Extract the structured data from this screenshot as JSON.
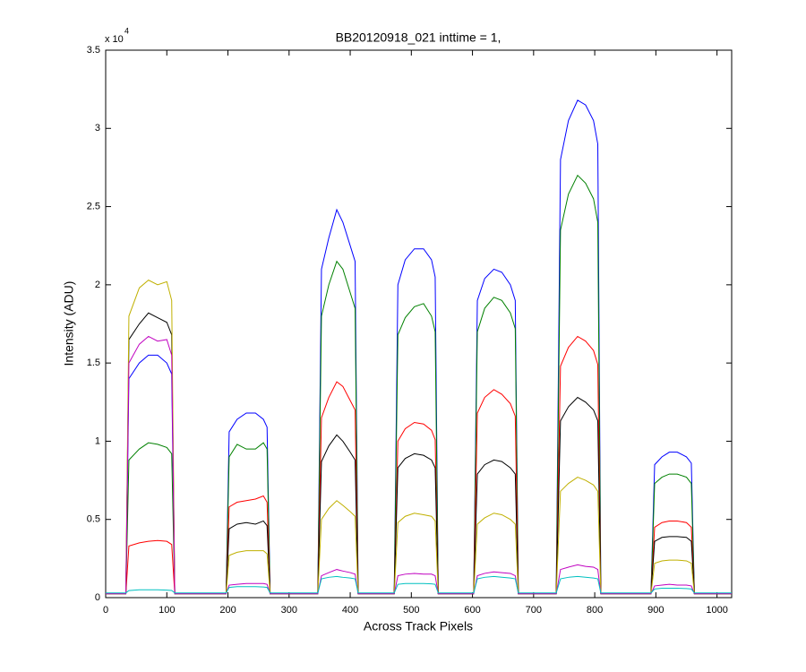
{
  "chart_data": {
    "type": "line",
    "title": "BB20120918_021 inttime = 1,",
    "x_label": "Across Track Pixels",
    "y_label": "Intensity (ADU)",
    "y_multiplier": {
      "base": "x 10",
      "power": "4"
    },
    "xlim": [
      0,
      1024
    ],
    "xticks": [
      0,
      100,
      200,
      300,
      400,
      500,
      600,
      700,
      800,
      900,
      1000
    ],
    "ylim": [
      0,
      35000
    ],
    "yticks": [
      0,
      {
        "value": 5000,
        "label": "0.5"
      },
      {
        "value": 10000,
        "label": "1"
      },
      {
        "value": 15000,
        "label": "1.5"
      },
      {
        "value": 20000,
        "label": "2"
      },
      {
        "value": 25000,
        "label": "2.5"
      },
      {
        "value": 30000,
        "label": "3"
      },
      {
        "value": 35000,
        "label": "3.5"
      }
    ],
    "grid": false,
    "x": [
      0,
      33,
      38,
      55,
      70,
      85,
      100,
      108,
      113,
      197,
      202,
      215,
      230,
      245,
      258,
      264,
      269,
      347,
      353,
      365,
      378,
      388,
      400,
      408,
      413,
      472,
      478,
      490,
      505,
      520,
      533,
      539,
      544,
      602,
      608,
      620,
      635,
      648,
      662,
      670,
      675,
      737,
      744,
      757,
      772,
      785,
      798,
      805,
      810,
      892,
      898,
      910,
      922,
      935,
      950,
      958,
      963,
      1024
    ],
    "series": [
      {
        "color": "#0000ff",
        "values": [
          250,
          250,
          14000,
          15000,
          15500,
          15500,
          15000,
          14300,
          250,
          250,
          10600,
          11400,
          11800,
          11800,
          11400,
          10900,
          250,
          250,
          21000,
          23000,
          24800,
          24000,
          22500,
          21500,
          250,
          250,
          20000,
          21600,
          22300,
          22300,
          21600,
          20500,
          250,
          250,
          19000,
          20400,
          21000,
          20800,
          20000,
          19000,
          250,
          250,
          28000,
          30500,
          31800,
          31500,
          30500,
          29000,
          250,
          250,
          8500,
          9000,
          9300,
          9300,
          9000,
          8600,
          250,
          250
        ]
      },
      {
        "color": "#008000",
        "values": [
          250,
          250,
          8800,
          9500,
          9900,
          9800,
          9600,
          9200,
          250,
          250,
          9000,
          9800,
          9500,
          9500,
          9900,
          9500,
          250,
          250,
          18000,
          20000,
          21500,
          21000,
          19500,
          18500,
          250,
          250,
          16800,
          17900,
          18600,
          18800,
          18000,
          17000,
          250,
          250,
          17000,
          18500,
          19200,
          19000,
          18200,
          17200,
          250,
          250,
          23500,
          25800,
          27000,
          26500,
          25500,
          24000,
          250,
          250,
          7300,
          7700,
          7900,
          7900,
          7700,
          7300,
          250,
          250
        ]
      },
      {
        "color": "#ff0000",
        "values": [
          250,
          250,
          3300,
          3500,
          3600,
          3650,
          3600,
          3400,
          250,
          250,
          5800,
          6100,
          6200,
          6300,
          6500,
          6100,
          250,
          250,
          11500,
          12800,
          13800,
          13500,
          12600,
          12000,
          250,
          250,
          10000,
          10800,
          11200,
          11100,
          10700,
          10100,
          250,
          250,
          11800,
          12800,
          13300,
          13000,
          12400,
          11600,
          250,
          250,
          14800,
          16000,
          16700,
          16400,
          15800,
          14900,
          250,
          250,
          4500,
          4800,
          4900,
          4900,
          4800,
          4500,
          250,
          250
        ]
      },
      {
        "color": "#000000",
        "values": [
          250,
          250,
          16500,
          17500,
          18200,
          17900,
          17600,
          16800,
          250,
          250,
          4400,
          4700,
          4800,
          4700,
          4900,
          4600,
          250,
          250,
          8700,
          9700,
          10400,
          10000,
          9300,
          8800,
          250,
          250,
          8300,
          8900,
          9200,
          9100,
          8800,
          8300,
          250,
          250,
          7900,
          8500,
          8800,
          8700,
          8300,
          7900,
          250,
          250,
          11300,
          12200,
          12800,
          12500,
          12000,
          11300,
          250,
          250,
          3600,
          3850,
          3900,
          3900,
          3850,
          3600,
          250,
          250
        ]
      },
      {
        "color": "#c0b000",
        "values": [
          250,
          250,
          18000,
          19800,
          20300,
          20000,
          20200,
          19000,
          250,
          250,
          2700,
          2900,
          3000,
          3000,
          3000,
          2800,
          250,
          250,
          5000,
          5700,
          6200,
          5900,
          5500,
          5200,
          250,
          250,
          4800,
          5200,
          5400,
          5300,
          5200,
          4900,
          250,
          250,
          4700,
          5100,
          5400,
          5300,
          5000,
          4700,
          250,
          250,
          6800,
          7300,
          7700,
          7500,
          7200,
          6800,
          250,
          250,
          2200,
          2350,
          2400,
          2400,
          2350,
          2200,
          250,
          250
        ]
      },
      {
        "color": "#c000c0",
        "values": [
          250,
          250,
          15000,
          16200,
          16700,
          16400,
          16500,
          15500,
          250,
          250,
          800,
          850,
          900,
          900,
          900,
          850,
          250,
          250,
          1400,
          1600,
          1800,
          1700,
          1600,
          1500,
          250,
          250,
          1400,
          1500,
          1550,
          1500,
          1500,
          1400,
          250,
          250,
          1400,
          1550,
          1650,
          1600,
          1550,
          1400,
          250,
          250,
          1800,
          1950,
          2100,
          2000,
          1950,
          1800,
          250,
          250,
          750,
          800,
          850,
          800,
          800,
          750,
          250,
          250
        ]
      },
      {
        "color": "#00c0c0",
        "values": [
          300,
          300,
          450,
          500,
          500,
          500,
          480,
          460,
          300,
          300,
          650,
          700,
          700,
          700,
          680,
          650,
          300,
          300,
          1200,
          1300,
          1350,
          1300,
          1250,
          1200,
          300,
          300,
          850,
          900,
          900,
          900,
          880,
          850,
          300,
          300,
          1200,
          1300,
          1350,
          1300,
          1250,
          1200,
          300,
          300,
          1200,
          1300,
          1350,
          1300,
          1250,
          1200,
          300,
          300,
          550,
          600,
          600,
          600,
          580,
          550,
          300,
          300
        ]
      }
    ]
  }
}
